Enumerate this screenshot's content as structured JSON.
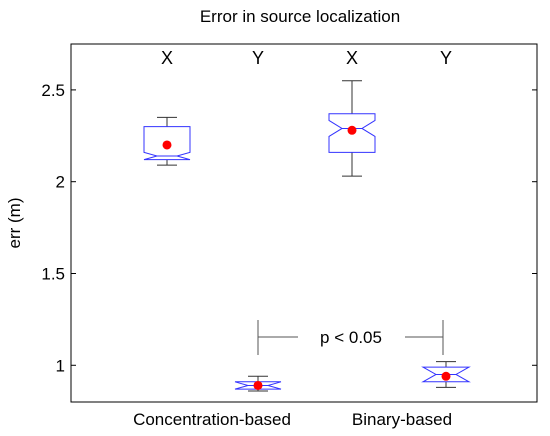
{
  "chart_data": {
    "type": "box",
    "title": "Error in source localization",
    "xlabel": "",
    "ylabel": "err (m)",
    "ylim": [
      0.8,
      2.75
    ],
    "yticks": [
      "1",
      "1.5",
      "2",
      "2.5"
    ],
    "grid": false,
    "group_labels": [
      "Concentration-based",
      "Binary-based"
    ],
    "column_labels": [
      "X",
      "Y",
      "X",
      "Y"
    ],
    "annotation": "p < 0.05",
    "colors": {
      "box": "#3333ff",
      "whisker": "#333333",
      "mean": "#ff0000",
      "axis": "#000000",
      "bracket": "#555555"
    },
    "boxes": [
      {
        "group": "Concentration-based",
        "axis": "X",
        "whisker_low": 2.09,
        "q1": 2.12,
        "median": 2.14,
        "q3": 2.3,
        "whisker_high": 2.35,
        "mean": 2.2
      },
      {
        "group": "Concentration-based",
        "axis": "Y",
        "whisker_low": 0.86,
        "q1": 0.87,
        "median": 0.89,
        "q3": 0.91,
        "whisker_high": 0.94,
        "mean": 0.89
      },
      {
        "group": "Binary-based",
        "axis": "X",
        "whisker_low": 2.03,
        "q1": 2.16,
        "median": 2.29,
        "q3": 2.37,
        "whisker_high": 2.55,
        "mean": 2.28
      },
      {
        "group": "Binary-based",
        "axis": "Y",
        "whisker_low": 0.88,
        "q1": 0.91,
        "median": 0.95,
        "q3": 0.99,
        "whisker_high": 1.02,
        "mean": 0.94
      }
    ]
  }
}
